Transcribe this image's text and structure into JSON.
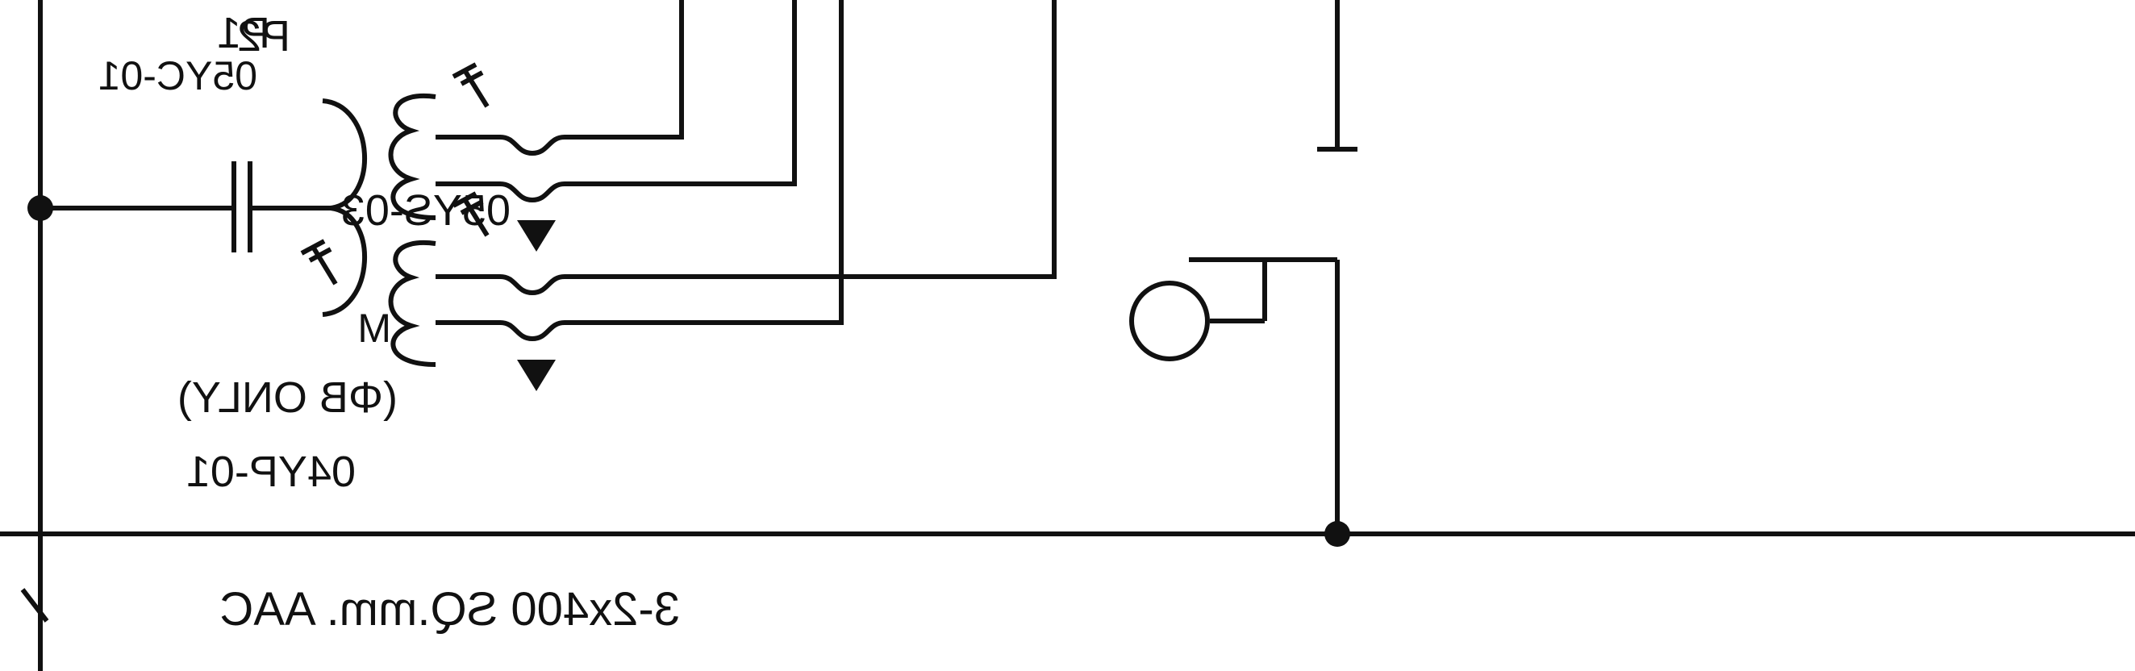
{
  "diagram": {
    "labels": {
      "p2": "P2",
      "p1": "P1",
      "rc": "05YC-01",
      "ys": "05YS-03",
      "motor": "M",
      "tap_note": "(ΦB ONLY)",
      "pt": "04YP-01",
      "bus_note": "3-2x400 SQ.mm. AAC"
    },
    "colors": {
      "ink": "#111111",
      "background": "#ffffff"
    }
  }
}
